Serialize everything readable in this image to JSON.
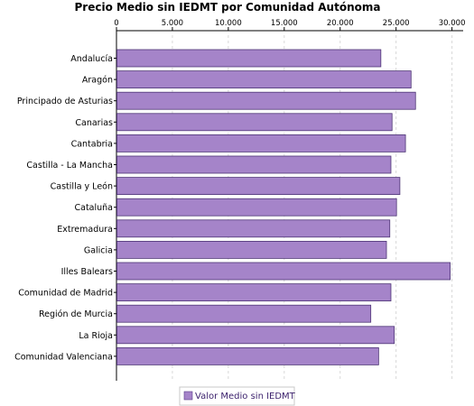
{
  "chart_data": {
    "type": "bar",
    "orientation": "horizontal",
    "title": "Precio Medio sin IEDMT por Comunidad Autónoma",
    "categories": [
      "Andalucía",
      "Aragón",
      "Principado de Asturias",
      "Canarias",
      "Cantabria",
      "Castilla - La Mancha",
      "Castilla y León",
      "Cataluña",
      "Extremadura",
      "Galicia",
      "Illes Balears",
      "Comunidad de Madrid",
      "Región de Murcia",
      "La Rioja",
      "Comunidad Valenciana"
    ],
    "series": [
      {
        "name": "Valor Medio sin IEDMT",
        "color": "#a584c9",
        "values": [
          23600,
          26300,
          26700,
          24600,
          25800,
          24500,
          25300,
          25000,
          24400,
          24100,
          29800,
          24500,
          22700,
          24800,
          23400
        ]
      }
    ],
    "xlim": [
      0,
      31000
    ],
    "x_ticks": [
      "0",
      "5.000",
      "10.000",
      "15.000",
      "20.000",
      "25.000",
      "30.000"
    ],
    "x_tick_values": [
      0,
      5000,
      10000,
      15000,
      20000,
      25000,
      30000
    ],
    "x_axis_position": "top",
    "grid": "vertical-dashed",
    "legend_position": "bottom-center"
  }
}
